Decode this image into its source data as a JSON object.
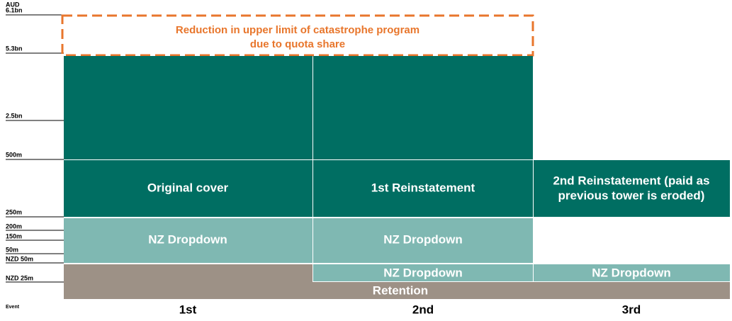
{
  "levels": [
    "AUD",
    "6.1bn",
    "5.3bn",
    "2.5bn",
    "500m",
    "250m",
    "200m",
    "150m",
    "50m",
    "NZD 50m",
    "NZD 25m",
    "Event"
  ],
  "note": [
    "Reduction in upper limit of catastrophe program",
    "due to quota share"
  ],
  "blocks": {
    "original_cover": "Original cover",
    "first_reinstatement": "1st Reinstatement",
    "second_reinstatement": [
      "2nd Reinstatement (paid as",
      "previous tower is eroded)"
    ],
    "nz_dropdown": "NZ Dropdown",
    "retention": "Retention"
  },
  "events": [
    "1st",
    "2nd",
    "3rd"
  ]
}
